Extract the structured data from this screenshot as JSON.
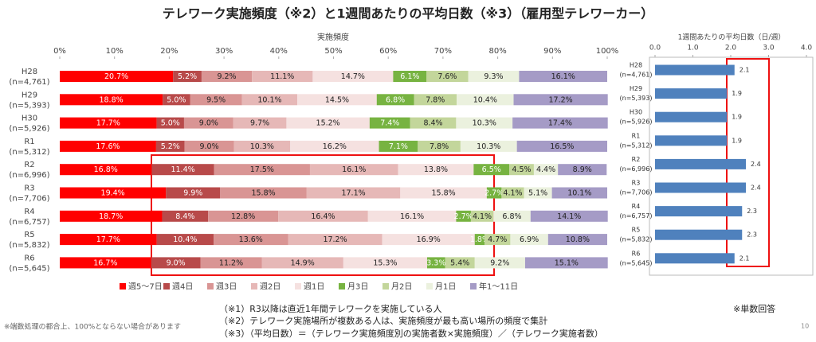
{
  "header": {
    "title": "テレワーク実施頻度（※2）と1週間あたりの平均日数（※3）（雇用型テレワーカー）"
  },
  "chart_data": [
    {
      "type": "stacked_bar",
      "orientation": "horizontal",
      "x_label": "実施頻度",
      "categories": [
        "H28",
        "H29",
        "H30",
        "R1",
        "R2",
        "R3",
        "R4",
        "R5",
        "R6"
      ],
      "n_labels": [
        "(n=4,761)",
        "(n=5,393)",
        "(n=5,926)",
        "(n=5,312)",
        "(n=6,996)",
        "(n=7,706)",
        "(n=6,757)",
        "(n=5,832)",
        "(n=5,645)"
      ],
      "xlim": [
        0,
        100
      ],
      "xticks": [
        {
          "value": 0,
          "label": "0%"
        },
        {
          "value": 10,
          "label": "10%"
        },
        {
          "value": 20,
          "label": "20%"
        },
        {
          "value": 30,
          "label": "30%"
        },
        {
          "value": 40,
          "label": "40%"
        },
        {
          "value": 50,
          "label": "50%"
        },
        {
          "value": 60,
          "label": "60%"
        },
        {
          "value": 70,
          "label": "70%"
        },
        {
          "value": 80,
          "label": "80%"
        },
        {
          "value": 90,
          "label": "90%"
        },
        {
          "value": 100,
          "label": "100%"
        }
      ],
      "legend": "bottom",
      "series": [
        {
          "name": "週5～7日",
          "color": "#ff0000",
          "values": [
            20.7,
            18.8,
            17.7,
            17.6,
            16.8,
            19.4,
            18.7,
            17.7,
            16.7
          ],
          "value_labels": [
            "20.7%",
            "18.8%",
            "17.7%",
            "17.6%",
            "16.8%",
            "19.4%",
            "18.7%",
            "17.7%",
            "16.7%"
          ]
        },
        {
          "name": "週4日",
          "color": "#b84a4a",
          "values": [
            5.2,
            5.0,
            5.0,
            5.2,
            11.4,
            9.9,
            8.4,
            10.4,
            9.0
          ],
          "value_labels": [
            "5.2%",
            "5.0%",
            "5.0%",
            "5.2%",
            "11.4%",
            "9.9%",
            "8.4%",
            "10.4%",
            "9.0%"
          ]
        },
        {
          "name": "週3日",
          "color": "#d99594",
          "values": [
            9.2,
            9.5,
            9.0,
            9.0,
            17.5,
            15.8,
            12.8,
            13.6,
            11.2
          ],
          "value_labels": [
            "9.2%",
            "9.5%",
            "9.0%",
            "9.0%",
            "17.5%",
            "15.8%",
            "12.8%",
            "13.6%",
            "11.2%"
          ]
        },
        {
          "name": "週2日",
          "color": "#e6b8b7",
          "values": [
            11.1,
            10.1,
            9.7,
            10.3,
            16.1,
            17.1,
            16.4,
            17.2,
            14.9
          ],
          "value_labels": [
            "11.1%",
            "10.1%",
            "9.7%",
            "10.3%",
            "16.1%",
            "17.1%",
            "16.4%",
            "17.2%",
            "14.9%"
          ]
        },
        {
          "name": "週1日",
          "color": "#f5e1e0",
          "values": [
            14.7,
            14.5,
            15.2,
            16.2,
            13.8,
            15.8,
            16.1,
            16.9,
            15.3
          ],
          "value_labels": [
            "14.7%",
            "14.5%",
            "15.2%",
            "16.2%",
            "13.8%",
            "15.8%",
            "16.1%",
            "16.9%",
            "15.3%"
          ]
        },
        {
          "name": "月3日",
          "color": "#77b341",
          "values": [
            6.1,
            6.8,
            7.4,
            7.1,
            6.5,
            2.7,
            2.7,
            1.8,
            3.3
          ],
          "value_labels": [
            "6.1%",
            "6.8%",
            "7.4%",
            "7.1%",
            "6.5%",
            "2.7%",
            "2.7%",
            "1.8%",
            "3.3%"
          ]
        },
        {
          "name": "月2日",
          "color": "#c3d69b",
          "values": [
            7.6,
            7.8,
            8.4,
            7.8,
            4.5,
            4.1,
            4.1,
            4.7,
            5.4
          ],
          "value_labels": [
            "7.6%",
            "7.8%",
            "8.4%",
            "7.8%",
            "4.5%",
            "4.1%",
            "4.1%",
            "4.7%",
            "5.4%"
          ]
        },
        {
          "name": "月1日",
          "color": "#ebf1de",
          "values": [
            9.3,
            10.4,
            10.3,
            10.3,
            4.4,
            5.1,
            6.8,
            6.9,
            9.2
          ],
          "value_labels": [
            "9.3%",
            "10.4%",
            "10.3%",
            "10.3%",
            "4.4%",
            "5.1%",
            "6.8%",
            "6.9%",
            "9.2%"
          ]
        },
        {
          "name": "年1～11日",
          "color": "#a59bc6",
          "values": [
            16.1,
            17.2,
            17.4,
            16.5,
            8.9,
            10.1,
            14.1,
            10.8,
            15.1
          ],
          "value_labels": [
            "16.1%",
            "17.2%",
            "17.4%",
            "16.5%",
            "8.9%",
            "10.1%",
            "14.1%",
            "10.8%",
            "15.1%"
          ]
        }
      ]
    },
    {
      "type": "bar",
      "orientation": "horizontal",
      "x_label": "1週間あたりの平均日数（日/週）",
      "categories": [
        "H28",
        "H29",
        "H30",
        "R1",
        "R2",
        "R3",
        "R4",
        "R5",
        "R6"
      ],
      "n_labels": [
        "(n=4,761)",
        "(n=5,393)",
        "(n=5,926)",
        "(n=5,312)",
        "(n=6,996)",
        "(n=7,706)",
        "(n=6,757)",
        "(n=5,832)",
        "(n=5,645)"
      ],
      "xlim": [
        0,
        4
      ],
      "xticks": [
        {
          "value": 0,
          "label": "0.0"
        },
        {
          "value": 1,
          "label": "1.0"
        },
        {
          "value": 2,
          "label": "2.0"
        },
        {
          "value": 3,
          "label": "3.0"
        },
        {
          "value": 4,
          "label": "4.0"
        }
      ],
      "color": "#4f81bd",
      "values": [
        2.1,
        1.9,
        1.9,
        1.9,
        2.4,
        2.4,
        2.3,
        2.3,
        2.1
      ]
    }
  ],
  "answer_note": "※単数回答",
  "notes": [
    "（※1）R3以降は直近1年間テレワークを実施している人",
    "（※2）テレワーク実施場所が複数ある人は、実施頻度が最も高い場所の頻度で集計",
    "（※3）（平均日数）＝（テレワーク実施頻度別の実施者数×実施頻度）／（テレワーク実施者数）"
  ],
  "footnote": "※端数処理の都合上、100%とならない場合があります",
  "page_number": "10"
}
